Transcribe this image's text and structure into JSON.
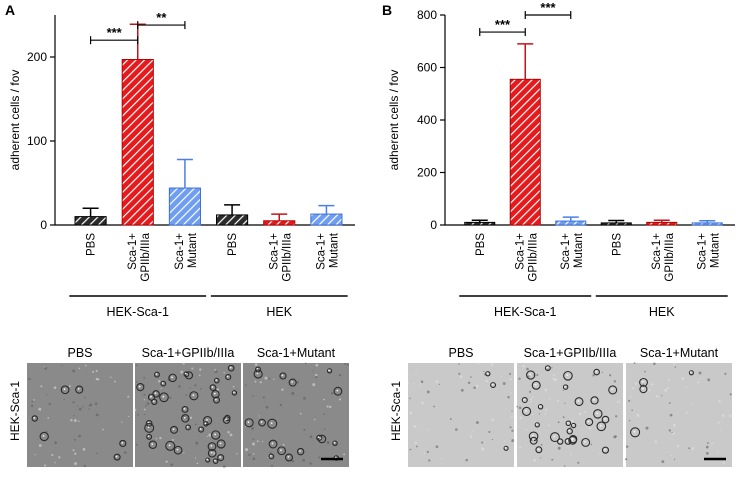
{
  "chart_data": [
    {
      "panel": "A",
      "type": "bar",
      "ylabel": "adherent cells / fov",
      "ylim": [
        0,
        250
      ],
      "yticks": [
        0,
        100,
        200
      ],
      "categories": [
        "PBS",
        "Sca-1+ GPIIb/IIIa",
        "Sca-1+ Mutant",
        "PBS",
        "Sca-1+ GPIIb/IIIa",
        "Sca-1+ Mutant"
      ],
      "category_lines": [
        [
          "PBS"
        ],
        [
          "Sca-1+",
          "GPIIb/IIIa"
        ],
        [
          "Sca-1+",
          "Mutant"
        ],
        [
          "PBS"
        ],
        [
          "Sca-1+",
          "GPIIb/IIIa"
        ],
        [
          "Sca-1+",
          "Mutant"
        ]
      ],
      "values": [
        10,
        197,
        44,
        12,
        5,
        13
      ],
      "errors": [
        10,
        42,
        34,
        12,
        8,
        10
      ],
      "groups": [
        {
          "label": "HEK-Sca-1",
          "from": 0,
          "to": 2
        },
        {
          "label": "HEK",
          "from": 3,
          "to": 5
        }
      ],
      "significance": [
        {
          "from": 0,
          "to": 1,
          "label": "***",
          "y": 220
        },
        {
          "from": 1,
          "to": 2,
          "label": "**",
          "y": 238
        }
      ]
    },
    {
      "panel": "B",
      "type": "bar",
      "ylabel": "adherent cells / fov",
      "ylim": [
        0,
        800
      ],
      "yticks": [
        0,
        200,
        400,
        600,
        800
      ],
      "categories": [
        "PBS",
        "Sca-1+ GPIIb/IIIa",
        "Sca-1+ Mutant",
        "PBS",
        "Sca-1+ GPIIb/IIIa",
        "Sca-1+ Mutant"
      ],
      "category_lines": [
        [
          "PBS"
        ],
        [
          "Sca-1+",
          "GPIIb/IIIa"
        ],
        [
          "Sca-1+",
          "Mutant"
        ],
        [
          "PBS"
        ],
        [
          "Sca-1+",
          "GPIIb/IIIa"
        ],
        [
          "Sca-1+",
          "Mutant"
        ]
      ],
      "values": [
        10,
        555,
        15,
        8,
        10,
        8
      ],
      "errors": [
        8,
        135,
        15,
        9,
        8,
        8
      ],
      "groups": [
        {
          "label": "HEK-Sca-1",
          "from": 0,
          "to": 2
        },
        {
          "label": "HEK",
          "from": 3,
          "to": 5
        }
      ],
      "significance": [
        {
          "from": 0,
          "to": 1,
          "label": "***",
          "y": 735
        },
        {
          "from": 1,
          "to": 2,
          "label": "***",
          "y": 800
        }
      ]
    }
  ],
  "bar_styles": [
    {
      "fill": "#2b2b2b",
      "stroke": "#000000",
      "hatch": "#ffffff",
      "error": "#000000"
    },
    {
      "fill": "#e41a1c",
      "stroke": "#b00000",
      "hatch": "#ffffff",
      "error": "#c0141a"
    },
    {
      "fill": "#6f9ef0",
      "stroke": "#3b6fd9",
      "hatch": "#ffffff",
      "error": "#4a7fe6"
    },
    {
      "fill": "#2b2b2b",
      "stroke": "#000000",
      "hatch": "#ffffff",
      "error": "#000000"
    },
    {
      "fill": "#e41a1c",
      "stroke": "#b00000",
      "hatch": "#ffffff",
      "error": "#c0141a"
    },
    {
      "fill": "#6f9ef0",
      "stroke": "#3b6fd9",
      "hatch": "#ffffff",
      "error": "#4a7fe6"
    }
  ],
  "micrographs": [
    {
      "panel": "A",
      "row_label": "HEK-Sca-1",
      "titles": [
        "PBS",
        "Sca-1+GPIIb/IIIa",
        "Sca-1+Mutant"
      ],
      "tone": "#8a8a8a",
      "cell_counts": [
        6,
        40,
        18
      ],
      "scale_bar": true
    },
    {
      "panel": "B",
      "row_label": "HEK-Sca-1",
      "titles": [
        "PBS",
        "Sca-1+GPIIb/IIIa",
        "Sca-1+Mutant"
      ],
      "tone": "#c9c9c9",
      "cell_counts": [
        3,
        30,
        4
      ],
      "scale_bar": true
    }
  ]
}
